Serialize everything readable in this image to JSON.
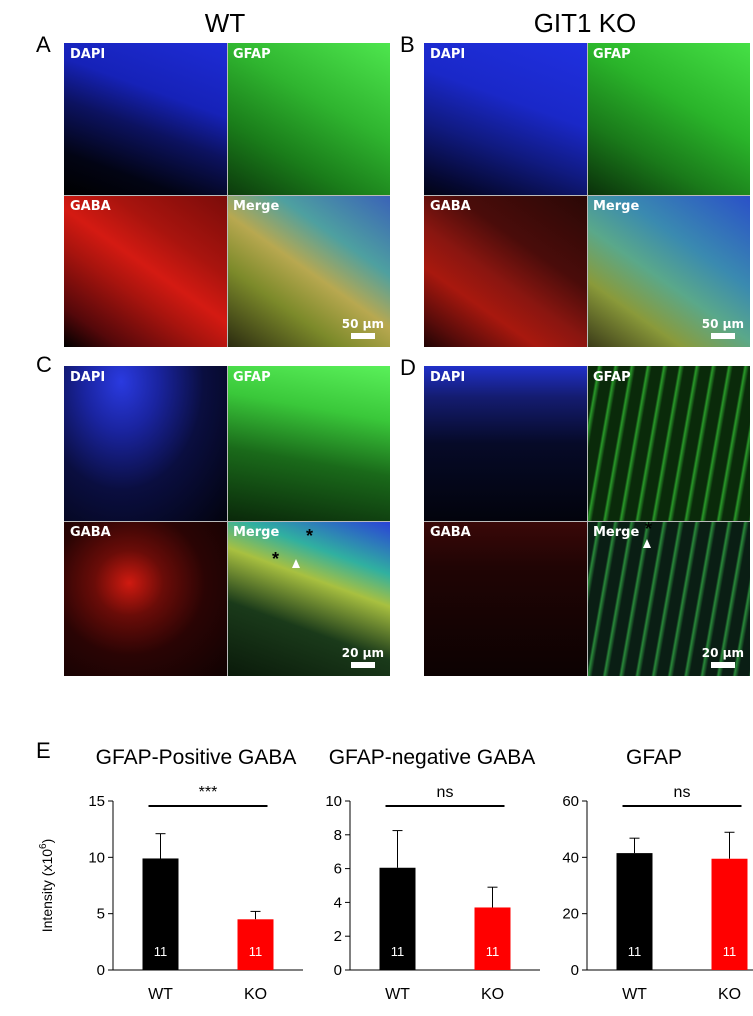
{
  "titles": {
    "wt": "WT",
    "ko": "GIT1 KO"
  },
  "panel_letters": {
    "a": "A",
    "b": "B",
    "c": "C",
    "d": "D",
    "e": "E"
  },
  "channels": {
    "dapi": "DAPI",
    "gfap": "GFAP",
    "gaba": "GABA",
    "merge": "Merge"
  },
  "scale_bars": {
    "ab": "50 µm",
    "cd": "20 µm"
  },
  "colors": {
    "wt": "#000000",
    "ko": "#ff0000",
    "dapi": "#1a2aff",
    "gfap": "#2fc82f",
    "gaba": "#e01a10"
  },
  "markers": {
    "asterisk": "*"
  },
  "chart_data": [
    {
      "type": "bar",
      "title": "GFAP-Positive GABA",
      "ylabel": "Intensity (x10",
      "ylabel_sup": "6",
      "ylabel_end": ")",
      "categories": [
        "WT",
        "KO"
      ],
      "values": [
        9.9,
        4.5
      ],
      "errors": [
        2.2,
        0.7
      ],
      "n_labels": [
        "11",
        "11"
      ],
      "ylim": [
        0,
        15
      ],
      "yticks": [
        "0",
        "5",
        "10",
        "15"
      ],
      "significance": "***"
    },
    {
      "type": "bar",
      "title": "GFAP-negative GABA",
      "categories": [
        "WT",
        "KO"
      ],
      "values": [
        6.05,
        3.7
      ],
      "errors": [
        2.2,
        1.2
      ],
      "n_labels": [
        "11",
        "11"
      ],
      "ylim": [
        0,
        10
      ],
      "yticks": [
        "0",
        "2",
        "4",
        "6",
        "8",
        "10"
      ],
      "significance": "ns"
    },
    {
      "type": "bar",
      "title": "GFAP",
      "categories": [
        "WT",
        "KO"
      ],
      "values": [
        41.5,
        39.5
      ],
      "errors": [
        5.3,
        9.4
      ],
      "n_labels": [
        "11",
        "11"
      ],
      "ylim": [
        0,
        60
      ],
      "yticks": [
        "0",
        "20",
        "40",
        "60"
      ],
      "significance": "ns"
    }
  ]
}
